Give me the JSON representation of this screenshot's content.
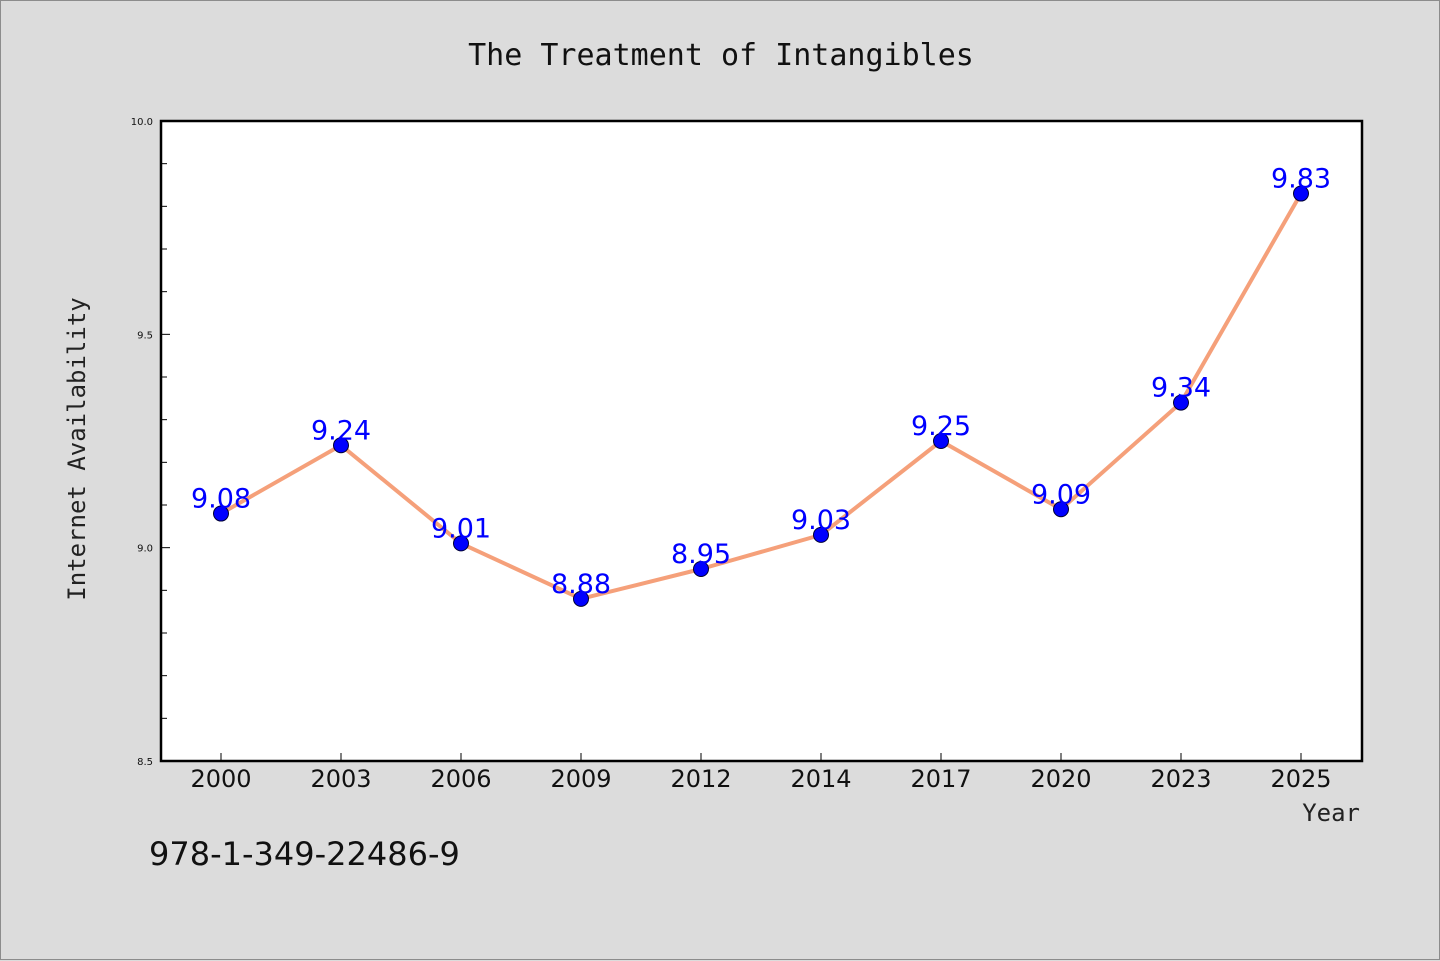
{
  "chart_data": {
    "type": "line",
    "title": "The Treatment of Intangibles",
    "xlabel": "Year",
    "ylabel": "Internet Availability",
    "categories": [
      "2000",
      "2003",
      "2006",
      "2009",
      "2012",
      "2014",
      "2017",
      "2020",
      "2023",
      "2025"
    ],
    "series": [
      {
        "values": [
          9.08,
          9.24,
          9.01,
          8.88,
          8.95,
          9.03,
          9.25,
          9.09,
          9.34,
          9.83
        ]
      }
    ],
    "ylim": [
      8.5,
      10.0
    ],
    "yticks": [
      "8.5",
      "9.0",
      "9.5",
      "10.0"
    ],
    "grid": false,
    "legend": "none",
    "colors": {
      "line": "#f5a07a",
      "marker": "#0000ff",
      "marker_edge": "#000033",
      "data_label": "#0000ff",
      "plot_background": "#ffffff",
      "figure_background": "#dcdcdc"
    }
  },
  "footer": {
    "code": "978-1-349-22486-9"
  }
}
